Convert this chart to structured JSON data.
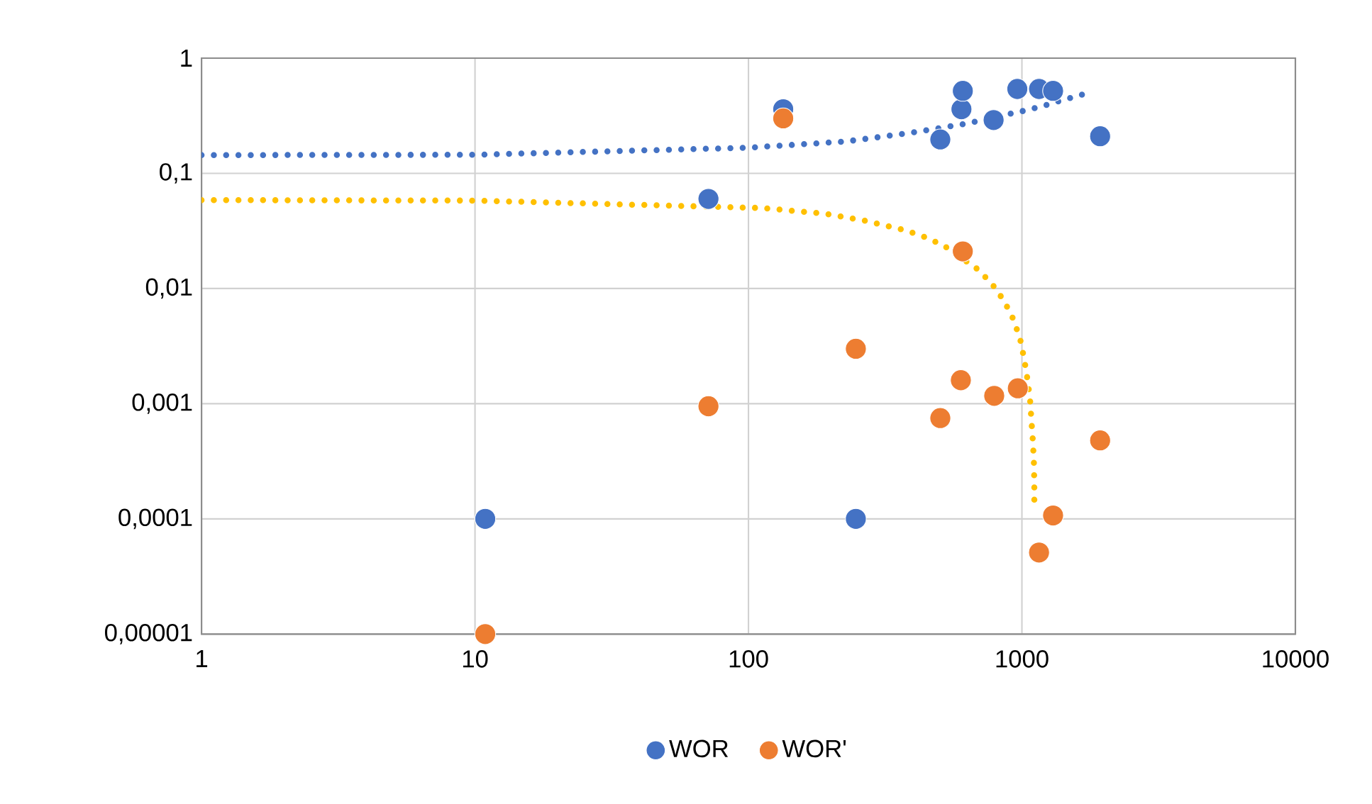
{
  "chart_data": {
    "type": "scatter",
    "log": "xy",
    "grid": true,
    "legend": "bottom",
    "marker": "circle",
    "xlim": [
      1,
      10000
    ],
    "xticks": [
      1,
      10,
      100,
      1000,
      10000
    ],
    "ylim": [
      1e-05,
      1
    ],
    "yticks": [
      {
        "value": 1e-05,
        "label": "0,00001"
      },
      {
        "value": 0.0001,
        "label": "0,0001"
      },
      {
        "value": 0.001,
        "label": "0,001"
      },
      {
        "value": 0.01,
        "label": "0,01"
      },
      {
        "value": 0.1,
        "label": "0,1"
      },
      {
        "value": 1,
        "label": "1"
      }
    ],
    "series": [
      {
        "name": "WOR",
        "color": "#4472c4",
        "x": [
          10.9,
          71.4,
          134,
          247,
          503,
          601,
          608,
          788,
          962,
          1155,
          1300,
          1932
        ],
        "values": [
          0.0001,
          0.06,
          0.36,
          0.0001,
          0.197,
          0.36,
          0.52,
          0.29,
          0.54,
          0.54,
          0.52,
          0.21
        ]
      },
      {
        "name": "WOR'",
        "color": "#ed7d31",
        "x": [
          10.9,
          71.4,
          134,
          247,
          503,
          598,
          608,
          792,
          966,
          1155,
          1300,
          1932
        ],
        "values": [
          1e-05,
          0.00095,
          0.3,
          0.003,
          0.00075,
          0.0016,
          0.021,
          0.00117,
          0.00136,
          5.1e-05,
          0.000107,
          0.00048
        ]
      },
      {
        "type": "line",
        "line_style": "dotted",
        "marker": "none",
        "color": "#4472c4",
        "x": [
          1,
          10,
          100,
          226,
          379,
          536,
          631,
          881,
          1038,
          1217,
          1422,
          1660
        ],
        "values": [
          0.144,
          0.145,
          0.167,
          0.189,
          0.222,
          0.254,
          0.271,
          0.324,
          0.353,
          0.39,
          0.435,
          0.483
        ]
      },
      {
        "type": "line",
        "line_style": "dotted",
        "marker": "none",
        "color": "#ffc000",
        "x": [
          1,
          10,
          112,
          190,
          268,
          376,
          445,
          519,
          692,
          779,
          861,
          931,
          985,
          1020,
          1049,
          1071,
          1084,
          1097,
          1106,
          1110,
          1110
        ],
        "values": [
          0.0586,
          0.058,
          0.05,
          0.0447,
          0.0387,
          0.032,
          0.0278,
          0.0235,
          0.0146,
          0.0109,
          0.0078,
          0.0054,
          0.00365,
          0.00243,
          0.0016,
          0.00108,
          0.0007,
          0.00047,
          0.00031,
          0.0002,
          0.000133
        ]
      }
    ]
  }
}
